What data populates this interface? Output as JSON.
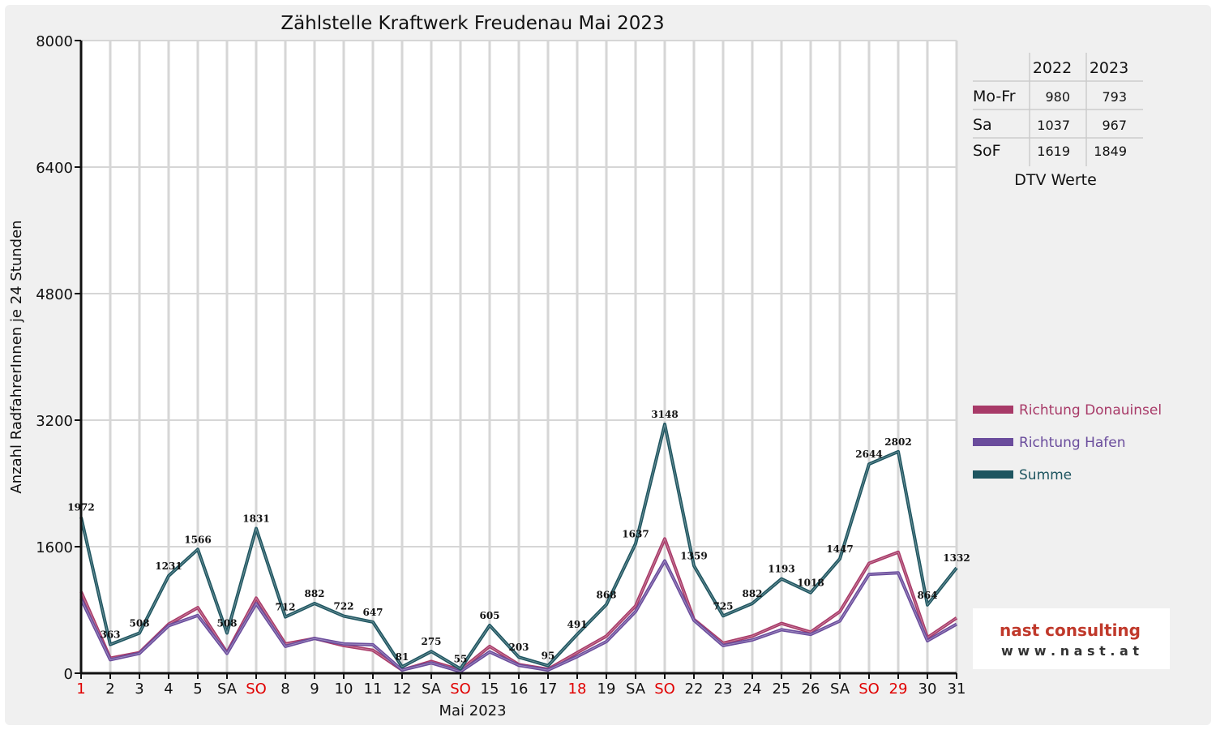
{
  "chart_data": {
    "type": "line",
    "title": "Zählstelle Kraftwerk Freudenau Mai 2023",
    "xlabel": "Mai 2023",
    "ylabel": "Anzahl RadfahrerInnen je 24 Stunden",
    "ylim": [
      0,
      8000
    ],
    "yticks": [
      "0",
      "1600",
      "3200",
      "4800",
      "6400",
      "8000"
    ],
    "grid": true,
    "legend_position": "right",
    "categories": [
      "1",
      "2",
      "3",
      "4",
      "5",
      "SA",
      "SO",
      "8",
      "9",
      "10",
      "11",
      "12",
      "SA",
      "SO",
      "15",
      "16",
      "17",
      "18",
      "19",
      "SA",
      "SO",
      "22",
      "23",
      "24",
      "25",
      "26",
      "SA",
      "SO",
      "29",
      "30",
      "31"
    ],
    "red_categories": [
      0,
      6,
      13,
      17,
      20,
      27,
      28
    ],
    "series": [
      {
        "name": "Richtung Donauinsel",
        "color": "#a83a68",
        "values": [
          1030,
          190,
          260,
          620,
          830,
          260,
          950,
          370,
          440,
          350,
          290,
          40,
          150,
          40,
          340,
          110,
          50,
          260,
          470,
          850,
          1700,
          680,
          380,
          470,
          630,
          520,
          780,
          1390,
          1530,
          450,
          700
        ]
      },
      {
        "name": "Richtung Hafen",
        "color": "#6a4c9c",
        "values": [
          940,
          170,
          250,
          600,
          730,
          250,
          880,
          340,
          440,
          370,
          360,
          40,
          130,
          20,
          270,
          100,
          40,
          210,
          400,
          780,
          1420,
          670,
          350,
          420,
          550,
          490,
          660,
          1250,
          1270,
          410,
          620
        ]
      },
      {
        "name": "Summe",
        "color": "#1e5560",
        "values": [
          1972,
          363,
          508,
          1231,
          1566,
          508,
          1831,
          712,
          882,
          722,
          647,
          81,
          275,
          55,
          605,
          203,
          95,
          491,
          868,
          1637,
          3148,
          1359,
          725,
          882,
          1193,
          1018,
          1447,
          2644,
          2802,
          864,
          1332
        ]
      }
    ],
    "data_labels": [
      "1972",
      "363",
      "508",
      "1231",
      "1566",
      "508",
      "1831",
      "712",
      "882",
      "722",
      "647",
      "81",
      "275",
      "55",
      "605",
      "203",
      "95",
      "491",
      "868",
      "1637",
      "3148",
      "1359",
      "725",
      "882",
      "1193",
      "1018",
      "1447",
      "2644",
      "2802",
      "864",
      "1332"
    ]
  },
  "dtv_table": {
    "headers": [
      "",
      "2022",
      "2023"
    ],
    "rows": [
      {
        "label": "Mo-Fr",
        "v2022": "980",
        "v2023": "793"
      },
      {
        "label": "Sa",
        "v2022": "1037",
        "v2023": "967"
      },
      {
        "label": "SoF",
        "v2022": "1619",
        "v2023": "1849"
      }
    ],
    "caption": "DTV Werte"
  },
  "logo": {
    "name": "nast consulting",
    "url": "w w w . n a s t . a t"
  }
}
